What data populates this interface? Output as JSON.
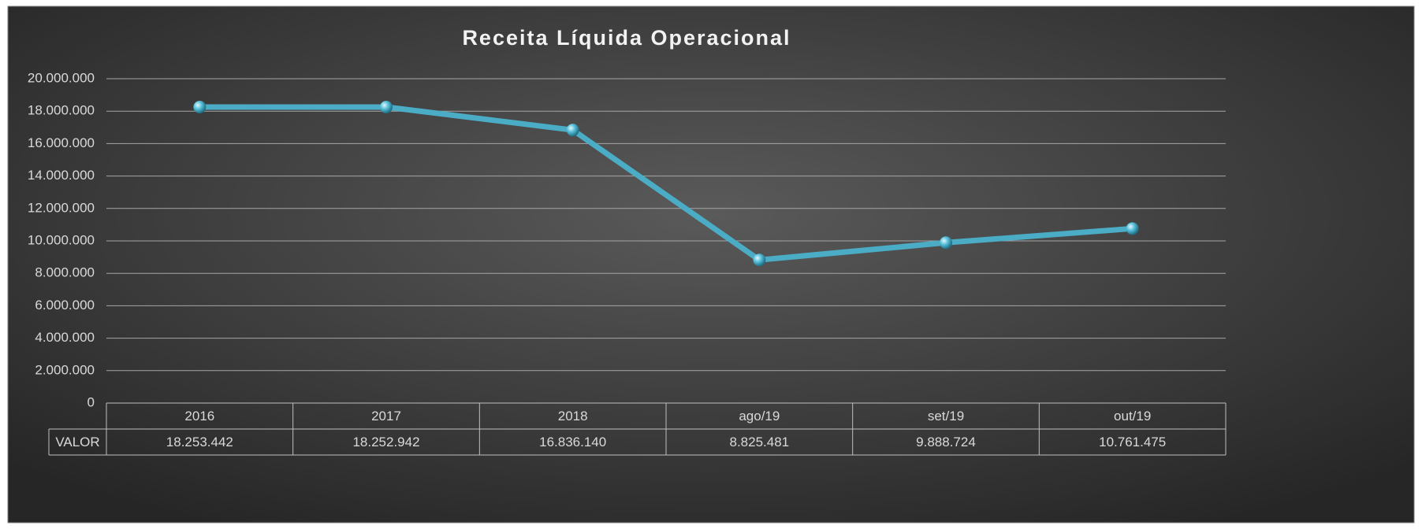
{
  "chart_data": {
    "type": "line",
    "title": "Receita Líquida Operacional",
    "categories": [
      "2016",
      "2017",
      "2018",
      "ago/19",
      "set/19",
      "out/19"
    ],
    "series": [
      {
        "name": "VALOR",
        "color": "#4bacc6",
        "values": [
          18253442,
          18252942,
          16836140,
          8825481,
          9888724,
          10761475
        ],
        "value_labels": [
          "18.253.442",
          "18.252.942",
          "16.836.140",
          "8.825.481",
          "9.888.724",
          "10.761.475"
        ]
      }
    ],
    "ylim": [
      0,
      20000000
    ],
    "yticks": [
      0,
      {
        "value": 2000000,
        "label": "2.000.000"
      },
      {
        "value": 4000000,
        "label": "4.000.000"
      },
      {
        "value": 6000000,
        "label": "6.000.000"
      },
      {
        "value": 8000000,
        "label": "8.000.000"
      },
      {
        "value": 10000000,
        "label": "10.000.000"
      },
      {
        "value": 12000000,
        "label": "12.000.000"
      },
      {
        "value": 14000000,
        "label": "14.000.000"
      },
      {
        "value": 16000000,
        "label": "16.000.000"
      },
      {
        "value": 18000000,
        "label": "18.000.000"
      },
      {
        "value": 20000000,
        "label": "20.000.000"
      }
    ],
    "grid": true,
    "data_table": true
  }
}
